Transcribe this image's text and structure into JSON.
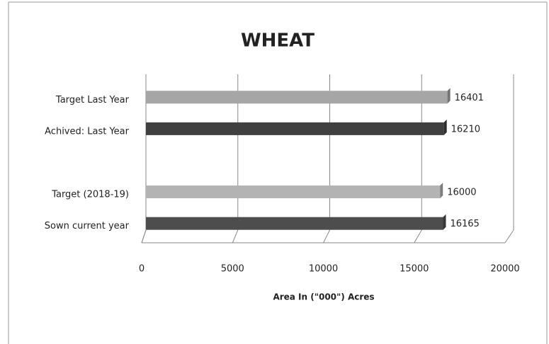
{
  "chart_data": {
    "type": "bar3d",
    "title": "WHEAT",
    "categories": [
      "Target  Last Year",
      "Achived: Last Year",
      null,
      "Target (2018-19)",
      "Sown current year"
    ],
    "values": [
      16401,
      16210,
      null,
      16000,
      16165
    ],
    "colors": [
      "#a6a6a6",
      "#404040",
      null,
      "#b3b3b3",
      "#4d4d4d"
    ],
    "xlabel": "Area In (\"000\") Acres",
    "xlim": [
      0,
      20000
    ],
    "xticks": [
      0,
      5000,
      10000,
      15000,
      20000
    ],
    "grid": true
  }
}
